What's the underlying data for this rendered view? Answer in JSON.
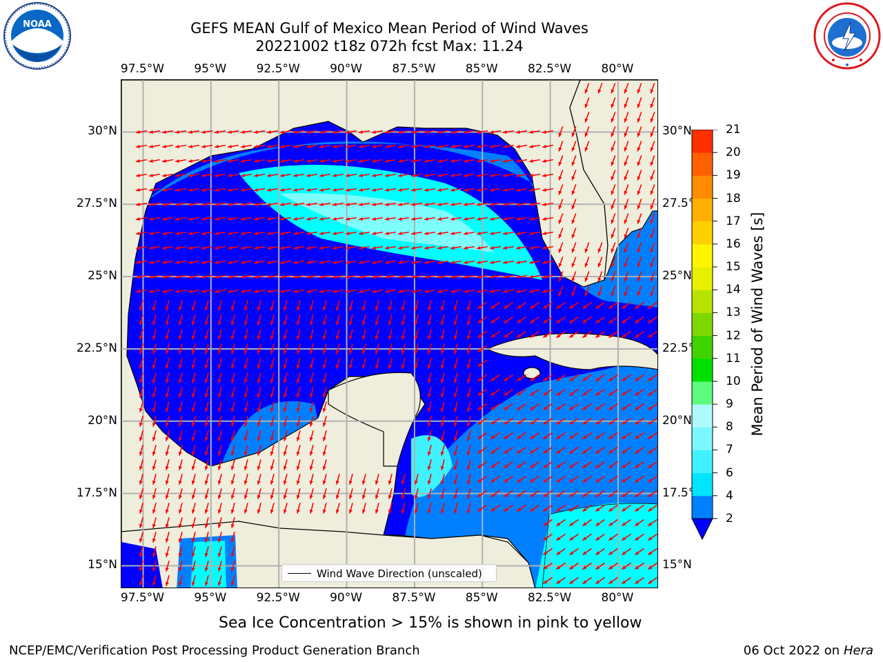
{
  "title": {
    "line1": "GEFS MEAN Gulf of Mexico Mean Period of Wind Waves",
    "line2": "20221002 t18z 072h fcst   Max: 11.24"
  },
  "map": {
    "lon_min": -98.3,
    "lon_max": -78.5,
    "lat_min": 14.2,
    "lat_max": 31.8,
    "lon_ticks": [
      "97.5°W",
      "95°W",
      "92.5°W",
      "90°W",
      "87.5°W",
      "85°W",
      "82.5°W",
      "80°W"
    ],
    "lon_values": [
      -97.5,
      -95,
      -92.5,
      -90,
      -87.5,
      -85,
      -82.5,
      -80
    ],
    "lat_ticks": [
      "30°N",
      "27.5°N",
      "25°N",
      "22.5°N",
      "20°N",
      "17.5°N",
      "15°N"
    ],
    "lat_values": [
      30,
      27.5,
      25,
      22.5,
      20,
      17.5,
      15
    ],
    "land_color": "#efeddb",
    "grid_color": "#b0b0b0",
    "arrow_color": "#ff0000"
  },
  "legend": {
    "label": "Wind Wave Direction (unscaled)"
  },
  "colorbar": {
    "label": "Mean Period of Wind Waves [s]",
    "ticks": [
      "2",
      "4",
      "6",
      "7",
      "8",
      "9",
      "10",
      "11",
      "12",
      "13",
      "14",
      "15",
      "16",
      "17",
      "18",
      "19",
      "20",
      "21"
    ],
    "colors": [
      "#0080ff",
      "#00e5ff",
      "#3ff2ff",
      "#7af7ff",
      "#aefaff",
      "#5dfb7d",
      "#00e000",
      "#3fd400",
      "#7fd700",
      "#b8e300",
      "#e8f000",
      "#fff500",
      "#ffd000",
      "#ffb000",
      "#ff8c00",
      "#ff6000",
      "#ff3000",
      "#ff0000"
    ],
    "extend_color": "#0000ff"
  },
  "wave_period_levels": {
    "deep_blue": "#0000ff",
    "blue": "#0080ff",
    "cyan": "#00ffff",
    "light_cyan": "#7ffdfd"
  },
  "ice_note": "Sea Ice Concentration > 15% is shown in pink to yellow",
  "footer": {
    "left": "NCEP/EMC/Verification Post Processing Product Generation Branch",
    "date": "06 Oct 2022 on ",
    "host": "Hera"
  },
  "logos": {
    "noaa": "NOAA",
    "nws": "NATIONAL WEATHER SERVICE"
  }
}
